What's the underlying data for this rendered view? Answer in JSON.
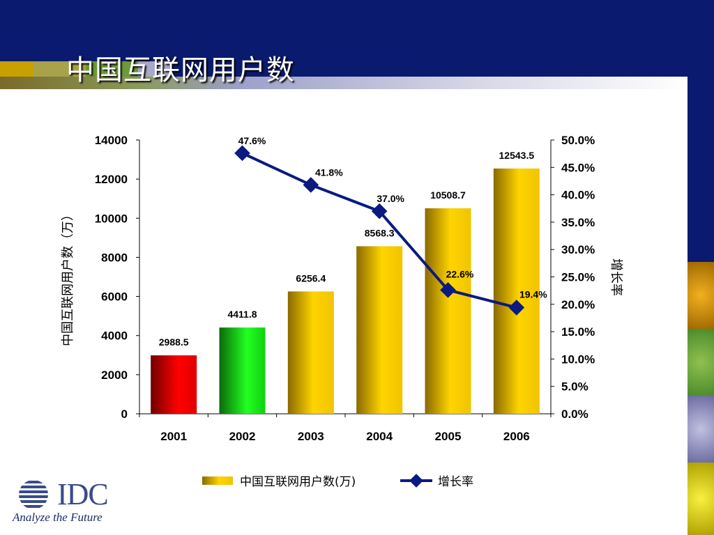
{
  "page": {
    "title": "中国互联网用户数"
  },
  "logo": {
    "name": "IDC",
    "tagline": "Analyze the Future"
  },
  "colors": {
    "header": "#0a1a6e",
    "line": "#0a1a80",
    "bar_gold": "#e8b800",
    "bar_red": "#d40000",
    "bar_green": "#10c010"
  },
  "chart_data": {
    "type": "bar",
    "categories": [
      "2001",
      "2002",
      "2003",
      "2004",
      "2005",
      "2006"
    ],
    "series": [
      {
        "name": "中国互联网用户数(万)",
        "type": "bar",
        "values": [
          2988.5,
          4411.8,
          6256.4,
          8568.3,
          10508.7,
          12543.5
        ],
        "labels": [
          "2988.5",
          "4411.8",
          "6256.4",
          "8568.3",
          "10508.7",
          "12543.5"
        ]
      },
      {
        "name": "增长率",
        "type": "line",
        "axis": "right",
        "values": [
          null,
          47.6,
          41.8,
          37.0,
          22.6,
          19.4
        ],
        "labels": [
          "",
          "47.6%",
          "41.8%",
          "37.0%",
          "22.6%",
          "19.4%"
        ]
      }
    ],
    "ylabel": "中国互联网用户数（万）",
    "y2label": "增长率",
    "ylim": [
      0,
      14000
    ],
    "y2lim": [
      0,
      50
    ],
    "yticks": [
      "0",
      "2000",
      "4000",
      "6000",
      "8000",
      "10000",
      "12000",
      "14000"
    ],
    "y2ticks": [
      "0.0%",
      "5.0%",
      "10.0%",
      "15.0%",
      "20.0%",
      "25.0%",
      "30.0%",
      "35.0%",
      "40.0%",
      "45.0%",
      "50.0%"
    ],
    "grid": false,
    "legend": "bottom"
  }
}
